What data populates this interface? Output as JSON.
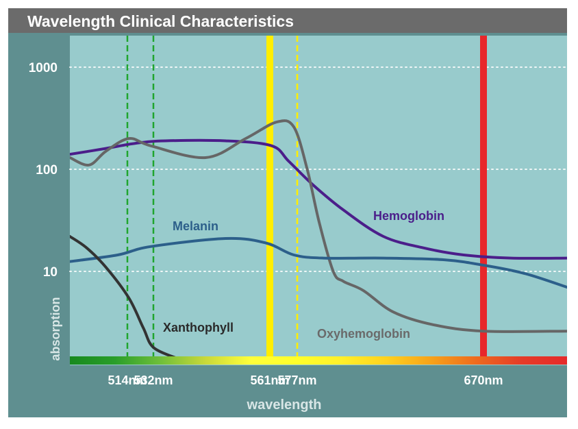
{
  "chart_data": {
    "type": "line",
    "title": "Wavelength Clinical Characteristics",
    "xlabel": "wavelength",
    "ylabel": "absorption",
    "y_scale": "log",
    "ylim": [
      1.5,
      1800
    ],
    "xlim": [
      490,
      700
    ],
    "y_ticks": [
      {
        "value": 1000,
        "label": "1000"
      },
      {
        "value": 100,
        "label": "100"
      },
      {
        "value": 10,
        "label": "10"
      }
    ],
    "x_ticks": [
      {
        "value": 514,
        "label": "514nm"
      },
      {
        "value": 532,
        "label": "532nm"
      },
      {
        "value": 561,
        "label": "561nm"
      },
      {
        "value": 577,
        "label": "577nm"
      },
      {
        "value": 670,
        "label": "670nm"
      }
    ],
    "wavelength_lines": [
      {
        "nm": 514,
        "style": "dashed",
        "color": "#1fa52e"
      },
      {
        "nm": 532,
        "style": "dashed",
        "color": "#1fa52e"
      },
      {
        "nm": 561,
        "style": "solid",
        "color": "#ffee00"
      },
      {
        "nm": 577,
        "style": "dashed",
        "color": "#ffee00"
      },
      {
        "nm": 670,
        "style": "solid",
        "color": "#e8272b"
      }
    ],
    "spectrum_colors": [
      "#17891f",
      "#2a9e2a",
      "#6fbf3a",
      "#c9d83a",
      "#ffff3a",
      "#ffff2a",
      "#fff02a",
      "#ffd21e",
      "#f7a21a",
      "#ee6a1e",
      "#e53b28",
      "#e52a2a"
    ],
    "series": [
      {
        "name": "Hemoglobin",
        "color": "#4b1e8a",
        "x": [
          490,
          505,
          520,
          535,
          550,
          562,
          572,
          585,
          600,
          620,
          640,
          660,
          680,
          700
        ],
        "y": [
          140,
          160,
          180,
          190,
          190,
          170,
          120,
          70,
          40,
          22,
          17,
          14.5,
          13.5,
          13.5
        ]
      },
      {
        "name": "Oxyhemoglobin",
        "color": "#666666",
        "x": [
          490,
          498,
          505,
          515,
          530,
          545,
          555,
          565,
          575,
          582,
          588,
          595,
          600,
          610,
          625,
          645,
          670,
          700
        ],
        "y": [
          130,
          110,
          150,
          200,
          170,
          130,
          200,
          290,
          260,
          100,
          30,
          10,
          8,
          6.5,
          4,
          3,
          2.6,
          2.6
        ]
      },
      {
        "name": "Melanin",
        "color": "#2c5f8a",
        "x": [
          490,
          510,
          530,
          550,
          560,
          575,
          590,
          620,
          650,
          670,
          685,
          700
        ],
        "y": [
          12.5,
          14.5,
          17.5,
          21,
          19,
          14.5,
          13.5,
          13.5,
          13,
          11.5,
          9.5,
          7
        ]
      },
      {
        "name": "Xanthophyll",
        "color": "#333333",
        "x": [
          490,
          497,
          505,
          515,
          525,
          532,
          538
        ],
        "y": [
          22,
          17,
          11,
          5.5,
          2.8,
          1.8,
          1.4
        ]
      }
    ],
    "curve_labels": {
      "hemoglobin": "Hemoglobin",
      "oxyhemoglobin": "Oxyhemoglobin",
      "melanin": "Melanin",
      "xanthophyll": "Xanthophyll"
    },
    "colors": {
      "plot_bg": "#98cbcc",
      "frame_bg": "#5f8f90",
      "title_bg": "#6b6b6b",
      "melanin_label": "#2c5f8a",
      "hemoglobin_label": "#4b1e8a",
      "xanthophyll_label": "#2a2a2a",
      "oxyhemoglobin_label": "#6a6a6a"
    }
  }
}
